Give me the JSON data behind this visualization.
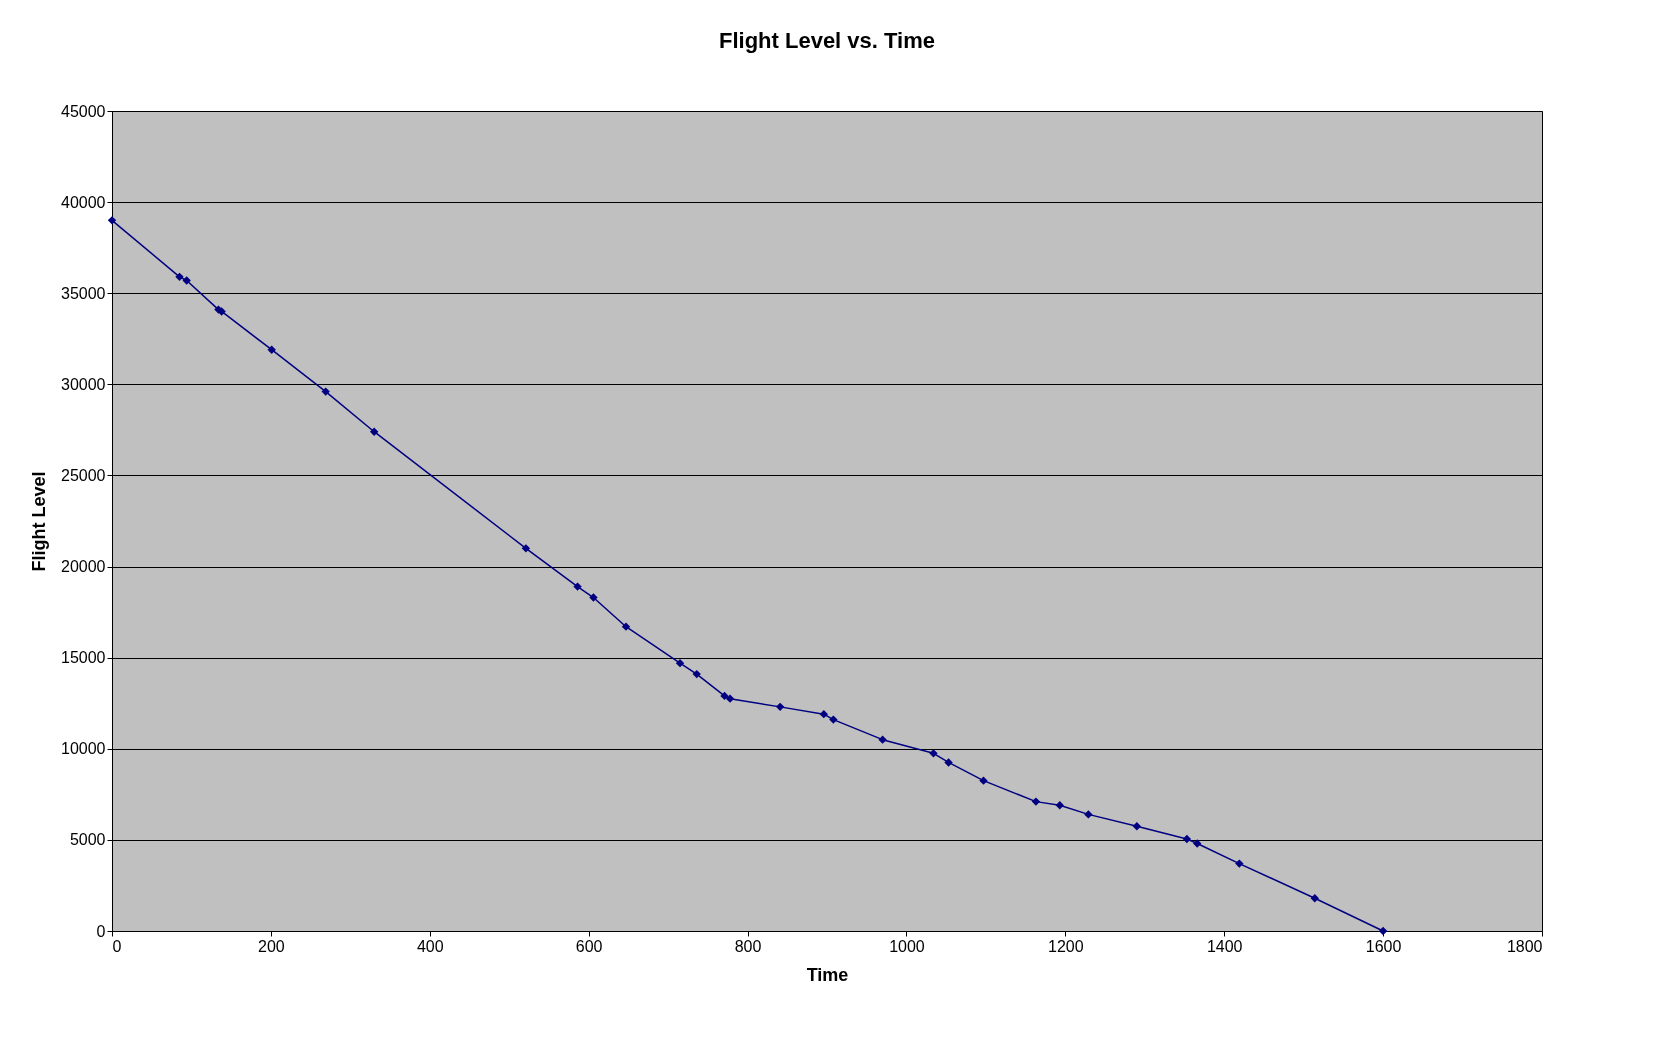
{
  "chart_data": {
    "type": "line",
    "title": "Flight Level vs. Time",
    "xlabel": "Time",
    "ylabel": "Flight Level",
    "x": [
      0,
      85,
      94,
      134,
      138,
      201,
      269,
      330,
      521,
      586,
      606,
      647,
      715,
      736,
      771,
      778,
      841,
      896,
      908,
      970,
      1034,
      1053,
      1097,
      1163,
      1193,
      1229,
      1290,
      1353,
      1366,
      1419,
      1514,
      1600
    ],
    "series": [
      {
        "color": "#000080",
        "values": [
          39000,
          35900,
          35700,
          34100,
          34000,
          31900,
          29600,
          27400,
          21000,
          18900,
          18300,
          16700,
          14700,
          14100,
          12900,
          12750,
          12300,
          11900,
          11600,
          10500,
          9750,
          9250,
          8250,
          7100,
          6900,
          6400,
          5750,
          5050,
          4800,
          3700,
          1800,
          0
        ]
      }
    ],
    "xlim": [
      0,
      1800
    ],
    "xticks": [
      0,
      200,
      400,
      600,
      800,
      1000,
      1200,
      1400,
      1600,
      1800
    ],
    "ylim": [
      0,
      45000
    ],
    "yticks": [
      0,
      5000,
      10000,
      15000,
      20000,
      25000,
      30000,
      35000,
      40000,
      45000
    ],
    "grid": "y",
    "marker": "diamond",
    "line_style": "solid"
  }
}
